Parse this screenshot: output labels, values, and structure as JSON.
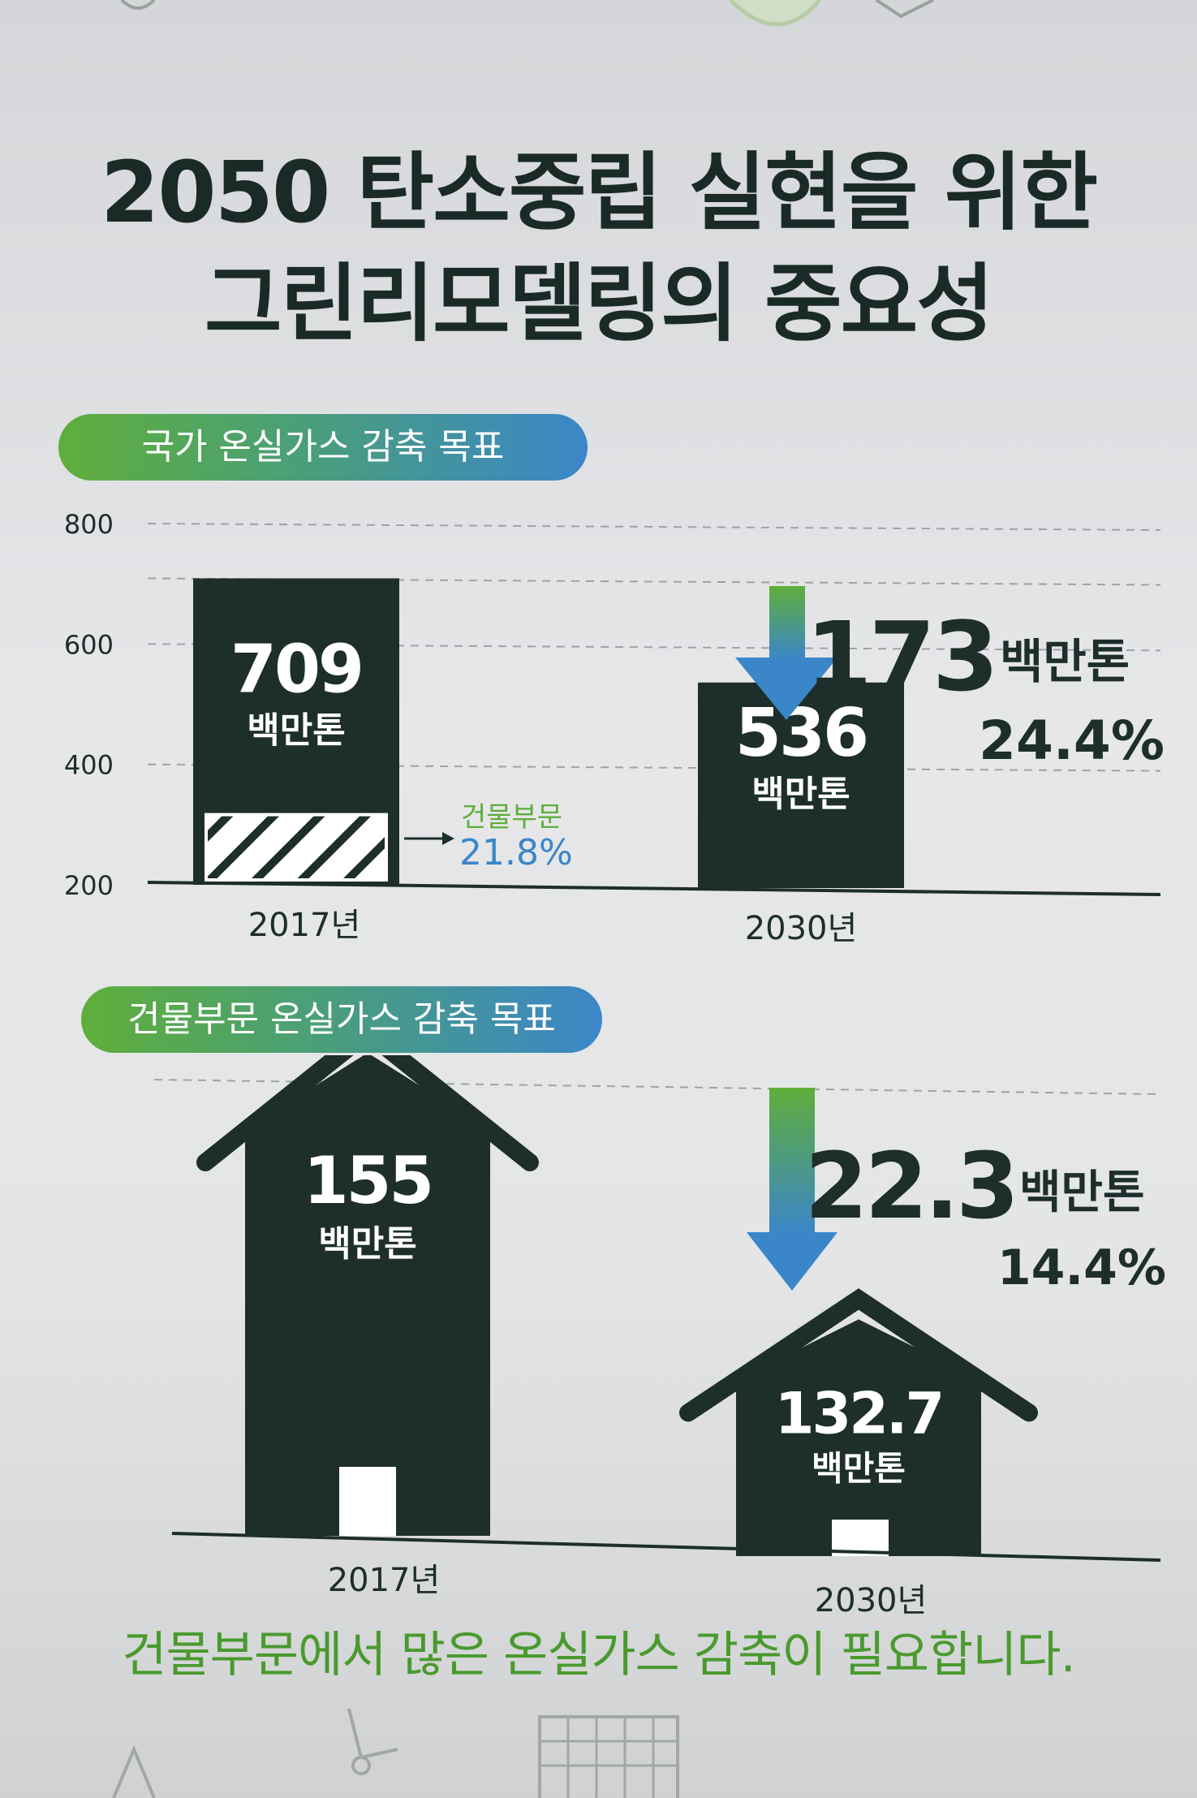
{
  "title": {
    "line1": "2050 탄소중립 실현을 위한",
    "line2": "그린리모델링의 중요성"
  },
  "sections": {
    "national_label": "국가 온실가스 감축 목표",
    "building_label": "건물부문 온실가스 감축 목표"
  },
  "national": {
    "bars": [
      {
        "year": "2017년",
        "value": 709,
        "value_text": "709",
        "unit": "백만톤"
      },
      {
        "year": "2030년",
        "value": 536,
        "value_text": "536",
        "unit": "백만톤"
      }
    ],
    "building_share": {
      "label": "건물부문",
      "value_text": "21.8%",
      "value": 21.8
    },
    "reduction": {
      "amount_text": "173",
      "unit": "백만톤",
      "percent_text": "24.4%"
    }
  },
  "building": {
    "houses": [
      {
        "year": "2017년",
        "value": 155,
        "value_text": "155",
        "unit": "백만톤"
      },
      {
        "year": "2030년",
        "value": 132.7,
        "value_text": "132.7",
        "unit": "백만톤"
      }
    ],
    "reduction": {
      "amount_text": "22.3",
      "unit": "백만톤",
      "percent_text": "14.4%"
    }
  },
  "footer": "건물부문에서 많은 온실가스 감축이 필요합니다.",
  "colors": {
    "dark": "#1d2e2b",
    "green": "#5fae3a",
    "blue": "#3b86c9",
    "footer_green": "#4a9a2e",
    "grid": "#9ea3a6"
  },
  "chart_data": [
    {
      "type": "bar",
      "categories": [
        "2017년",
        "2030년"
      ],
      "values": [
        709,
        536
      ],
      "title": "국가 온실가스 감축 목표",
      "xlabel": "",
      "ylabel": "",
      "ylim": [
        200,
        800
      ],
      "yticks": [
        200,
        400,
        600,
        800
      ],
      "annotations": [
        "709 백만톤",
        "536 백만톤",
        "건물부문 21.8%",
        "173백만톤",
        "24.4%"
      ]
    },
    {
      "type": "bar",
      "categories": [
        "2017년",
        "2030년"
      ],
      "values": [
        155,
        132.7
      ],
      "title": "건물부문 온실가스 감축 목표",
      "xlabel": "",
      "ylabel": "",
      "annotations": [
        "155 백만톤",
        "132.7 백만톤",
        "22.3백만톤",
        "14.4%"
      ]
    }
  ]
}
